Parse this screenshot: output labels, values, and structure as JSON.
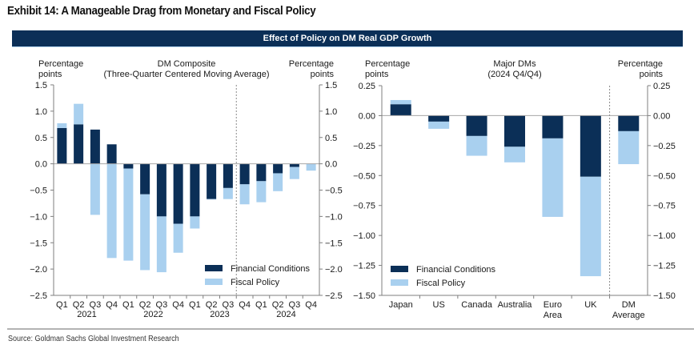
{
  "exhibit_title": "Exhibit 14: A Manageable Drag from Monetary and Fiscal Policy",
  "banner_title": "Effect of Policy on DM Real GDP Growth",
  "source": "Source: Goldman Sachs Global Investment Research",
  "colors": {
    "financial": "#0b2f57",
    "fiscal": "#a9d0ef",
    "axis": "#7f7f7f"
  },
  "chart_data": [
    {
      "type": "bar",
      "stacked": true,
      "title": "DM Composite",
      "subtitle": "(Three-Quarter Centered Moving Average)",
      "ylabel_left": "Percentage points",
      "ylabel_right": "Percentage points",
      "ylim": [
        -2.5,
        1.5
      ],
      "yticks": [
        1.5,
        1.0,
        0.5,
        0.0,
        -0.5,
        -1.0,
        -1.5,
        -2.0,
        -2.5
      ],
      "ytick_labels": [
        "1.5",
        "1.0",
        "0.5",
        "0.0",
        "−0.5",
        "−1.0",
        "−1.5",
        "−2.0",
        "−2.5"
      ],
      "categories": [
        "Q1",
        "Q2",
        "Q3",
        "Q4",
        "Q1",
        "Q2",
        "Q3",
        "Q4",
        "Q1",
        "Q2",
        "Q3",
        "Q4",
        "Q1",
        "Q2",
        "Q3",
        "Q4"
      ],
      "year_labels": [
        {
          "label": "2021",
          "start": 0,
          "end": 3
        },
        {
          "label": "2022",
          "start": 4,
          "end": 7
        },
        {
          "label": "2023",
          "start": 8,
          "end": 11
        },
        {
          "label": "2024",
          "start": 12,
          "end": 15
        }
      ],
      "divider_after_index": 10,
      "series": [
        {
          "name": "Financial Conditions",
          "values": [
            0.68,
            0.75,
            0.65,
            0.37,
            -0.09,
            -0.58,
            -1.0,
            -1.14,
            -1.0,
            -0.67,
            -0.46,
            -0.39,
            -0.33,
            -0.18,
            -0.06,
            0.0
          ]
        },
        {
          "name": "Fiscal Policy",
          "values": [
            0.09,
            0.39,
            -0.97,
            -1.79,
            -1.75,
            -1.44,
            -1.06,
            -0.55,
            -0.23,
            -0.01,
            -0.21,
            -0.38,
            -0.4,
            -0.34,
            -0.23,
            -0.13
          ]
        }
      ],
      "legend": [
        "Financial Conditions",
        "Fiscal Policy"
      ],
      "legend_position": "bottom-right",
      "grid": false
    },
    {
      "type": "bar",
      "stacked": true,
      "title": "Major DMs",
      "subtitle": "(2024 Q4/Q4)",
      "ylabel_left": "Percentage points",
      "ylabel_right": "Percentage points",
      "ylim": [
        -1.5,
        0.25
      ],
      "yticks": [
        0.25,
        0.0,
        -0.25,
        -0.5,
        -0.75,
        -1.0,
        -1.25,
        -1.5
      ],
      "ytick_labels_left": [
        "0.25",
        "0.00",
        "−0.25",
        "−0.50",
        "−0.75",
        "−1.00",
        "−1.25",
        "−1.50"
      ],
      "ytick_labels_right": [
        "0.25",
        "0.00",
        "−0.25",
        "−0.50",
        "−0.75",
        "−1.00",
        "−1.25",
        "−1.50"
      ],
      "categories": [
        "Japan",
        "US",
        "Canada",
        "Australia",
        "Euro Area",
        "UK",
        "DM Average"
      ],
      "category_lines": [
        [
          "Japan"
        ],
        [
          "US"
        ],
        [
          "Canada"
        ],
        [
          "Australia"
        ],
        [
          "Euro",
          "Area"
        ],
        [
          "UK"
        ],
        [
          "DM",
          "Average"
        ]
      ],
      "divider_after_index": 5,
      "series": [
        {
          "name": "Financial Conditions",
          "values": [
            0.095,
            -0.05,
            -0.17,
            -0.26,
            -0.19,
            -0.51,
            -0.13
          ]
        },
        {
          "name": "Fiscal Policy",
          "values": [
            0.035,
            -0.06,
            -0.165,
            -0.13,
            -0.655,
            -0.83,
            -0.275
          ]
        }
      ],
      "legend": [
        "Financial Conditions",
        "Fiscal Policy"
      ],
      "legend_position": "bottom-left",
      "grid": false
    }
  ]
}
